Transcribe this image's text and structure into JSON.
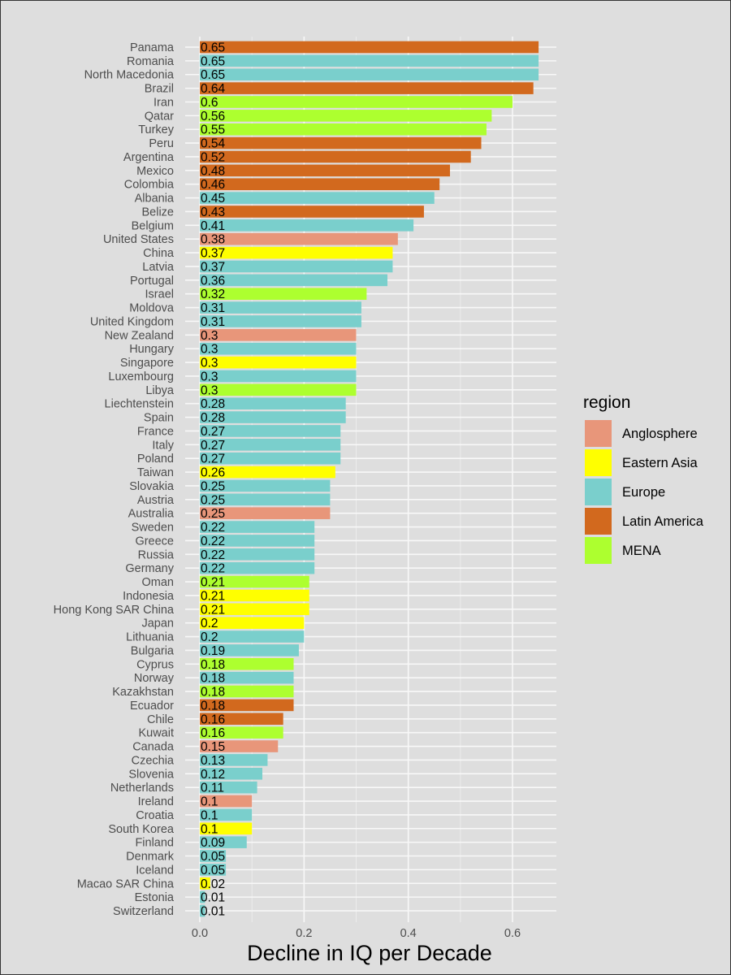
{
  "chart_data": {
    "type": "bar",
    "orientation": "horizontal",
    "title": "",
    "xlabel": "Decline in IQ per Decade",
    "ylabel": "",
    "xlim": [
      0,
      0.68
    ],
    "xticks": [
      0.0,
      0.2,
      0.4,
      0.6
    ],
    "xtick_labels": [
      "0.0",
      "0.2",
      "0.4",
      "0.6"
    ],
    "grid": true,
    "legend": {
      "title": "region",
      "placement": "right",
      "entries": [
        {
          "name": "Anglosphere",
          "color": "#e8967a"
        },
        {
          "name": "Eastern Asia",
          "color": "#ffff00"
        },
        {
          "name": "Europe",
          "color": "#7acfcc"
        },
        {
          "name": "Latin America",
          "color": "#d2691e"
        },
        {
          "name": "MENA",
          "color": "#adff2f"
        }
      ]
    },
    "bars": [
      {
        "country": "Panama",
        "region": "Latin America",
        "value": 0.65
      },
      {
        "country": "Romania",
        "region": "Europe",
        "value": 0.65
      },
      {
        "country": "North Macedonia",
        "region": "Europe",
        "value": 0.65
      },
      {
        "country": "Brazil",
        "region": "Latin America",
        "value": 0.64
      },
      {
        "country": "Iran",
        "region": "MENA",
        "value": 0.6
      },
      {
        "country": "Qatar",
        "region": "MENA",
        "value": 0.56
      },
      {
        "country": "Turkey",
        "region": "MENA",
        "value": 0.55
      },
      {
        "country": "Peru",
        "region": "Latin America",
        "value": 0.54
      },
      {
        "country": "Argentina",
        "region": "Latin America",
        "value": 0.52
      },
      {
        "country": "Mexico",
        "region": "Latin America",
        "value": 0.48
      },
      {
        "country": "Colombia",
        "region": "Latin America",
        "value": 0.46
      },
      {
        "country": "Albania",
        "region": "Europe",
        "value": 0.45
      },
      {
        "country": "Belize",
        "region": "Latin America",
        "value": 0.43
      },
      {
        "country": "Belgium",
        "region": "Europe",
        "value": 0.41
      },
      {
        "country": "United States",
        "region": "Anglosphere",
        "value": 0.38
      },
      {
        "country": "China",
        "region": "Eastern Asia",
        "value": 0.37
      },
      {
        "country": "Latvia",
        "region": "Europe",
        "value": 0.37
      },
      {
        "country": "Portugal",
        "region": "Europe",
        "value": 0.36
      },
      {
        "country": "Israel",
        "region": "MENA",
        "value": 0.32
      },
      {
        "country": "Moldova",
        "region": "Europe",
        "value": 0.31
      },
      {
        "country": "United Kingdom",
        "region": "Europe",
        "value": 0.31
      },
      {
        "country": "New Zealand",
        "region": "Anglosphere",
        "value": 0.3
      },
      {
        "country": "Hungary",
        "region": "Europe",
        "value": 0.3
      },
      {
        "country": "Singapore",
        "region": "Eastern Asia",
        "value": 0.3
      },
      {
        "country": "Luxembourg",
        "region": "Europe",
        "value": 0.3
      },
      {
        "country": "Libya",
        "region": "MENA",
        "value": 0.3
      },
      {
        "country": "Liechtenstein",
        "region": "Europe",
        "value": 0.28
      },
      {
        "country": "Spain",
        "region": "Europe",
        "value": 0.28
      },
      {
        "country": "France",
        "region": "Europe",
        "value": 0.27
      },
      {
        "country": "Italy",
        "region": "Europe",
        "value": 0.27
      },
      {
        "country": "Poland",
        "region": "Europe",
        "value": 0.27
      },
      {
        "country": "Taiwan",
        "region": "Eastern Asia",
        "value": 0.26
      },
      {
        "country": "Slovakia",
        "region": "Europe",
        "value": 0.25
      },
      {
        "country": "Austria",
        "region": "Europe",
        "value": 0.25
      },
      {
        "country": "Australia",
        "region": "Anglosphere",
        "value": 0.25
      },
      {
        "country": "Sweden",
        "region": "Europe",
        "value": 0.22
      },
      {
        "country": "Greece",
        "region": "Europe",
        "value": 0.22
      },
      {
        "country": "Russia",
        "region": "Europe",
        "value": 0.22
      },
      {
        "country": "Germany",
        "region": "Europe",
        "value": 0.22
      },
      {
        "country": "Oman",
        "region": "MENA",
        "value": 0.21
      },
      {
        "country": "Indonesia",
        "region": "Eastern Asia",
        "value": 0.21
      },
      {
        "country": "Hong Kong SAR China",
        "region": "Eastern Asia",
        "value": 0.21
      },
      {
        "country": "Japan",
        "region": "Eastern Asia",
        "value": 0.2
      },
      {
        "country": "Lithuania",
        "region": "Europe",
        "value": 0.2
      },
      {
        "country": "Bulgaria",
        "region": "Europe",
        "value": 0.19
      },
      {
        "country": "Cyprus",
        "region": "MENA",
        "value": 0.18
      },
      {
        "country": "Norway",
        "region": "Europe",
        "value": 0.18
      },
      {
        "country": "Kazakhstan",
        "region": "MENA",
        "value": 0.18
      },
      {
        "country": "Ecuador",
        "region": "Latin America",
        "value": 0.18
      },
      {
        "country": "Chile",
        "region": "Latin America",
        "value": 0.16
      },
      {
        "country": "Kuwait",
        "region": "MENA",
        "value": 0.16
      },
      {
        "country": "Canada",
        "region": "Anglosphere",
        "value": 0.15
      },
      {
        "country": "Czechia",
        "region": "Europe",
        "value": 0.13
      },
      {
        "country": "Slovenia",
        "region": "Europe",
        "value": 0.12
      },
      {
        "country": "Netherlands",
        "region": "Europe",
        "value": 0.11
      },
      {
        "country": "Ireland",
        "region": "Anglosphere",
        "value": 0.1
      },
      {
        "country": "Croatia",
        "region": "Europe",
        "value": 0.1
      },
      {
        "country": "South Korea",
        "region": "Eastern Asia",
        "value": 0.1
      },
      {
        "country": "Finland",
        "region": "Europe",
        "value": 0.09
      },
      {
        "country": "Denmark",
        "region": "Europe",
        "value": 0.05
      },
      {
        "country": "Iceland",
        "region": "Europe",
        "value": 0.05
      },
      {
        "country": "Macao SAR China",
        "region": "Eastern Asia",
        "value": 0.02
      },
      {
        "country": "Estonia",
        "region": "Europe",
        "value": 0.01
      },
      {
        "country": "Switzerland",
        "region": "Europe",
        "value": 0.01
      }
    ]
  }
}
